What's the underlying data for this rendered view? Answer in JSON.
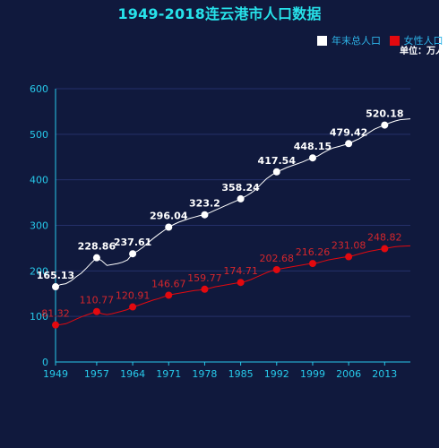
{
  "chart_data": {
    "type": "line",
    "title": "1949-2018连云港市人口数据",
    "unit": "单位：万人",
    "xlabel": "",
    "ylabel": "",
    "x_ticks": [
      "1949",
      "1957",
      "1964",
      "1971",
      "1978",
      "1985",
      "1992",
      "1999",
      "2006",
      "2013"
    ],
    "ylim": [
      0,
      600
    ],
    "y_ticks": [
      0,
      100,
      200,
      300,
      400,
      500,
      600
    ],
    "grid": true,
    "legend": "top-right",
    "series": [
      {
        "name": "年末总人口",
        "color": "#ffffff",
        "line": [
          [
            1949,
            165
          ],
          [
            1950,
            170
          ],
          [
            1951,
            172
          ],
          [
            1952,
            178
          ],
          [
            1953,
            187
          ],
          [
            1954,
            195
          ],
          [
            1955,
            206
          ],
          [
            1956,
            218
          ],
          [
            1957,
            228.9
          ],
          [
            1958,
            222
          ],
          [
            1959,
            212
          ],
          [
            1960,
            214
          ],
          [
            1961,
            216
          ],
          [
            1962,
            219
          ],
          [
            1963,
            224
          ],
          [
            1964,
            237.6
          ],
          [
            1965,
            244
          ],
          [
            1966,
            252
          ],
          [
            1967,
            262
          ],
          [
            1968,
            271
          ],
          [
            1969,
            280
          ],
          [
            1970,
            288
          ],
          [
            1971,
            296
          ],
          [
            1972,
            302
          ],
          [
            1973,
            307
          ],
          [
            1974,
            311
          ],
          [
            1975,
            315
          ],
          [
            1976,
            318
          ],
          [
            1977,
            321
          ],
          [
            1978,
            323.2
          ],
          [
            1979,
            328
          ],
          [
            1980,
            333
          ],
          [
            1981,
            338
          ],
          [
            1982,
            343
          ],
          [
            1983,
            348
          ],
          [
            1984,
            353
          ],
          [
            1985,
            358.2
          ],
          [
            1986,
            364
          ],
          [
            1987,
            371
          ],
          [
            1988,
            379
          ],
          [
            1989,
            391
          ],
          [
            1990,
            402
          ],
          [
            1991,
            410
          ],
          [
            1992,
            417.5
          ],
          [
            1993,
            422
          ],
          [
            1994,
            427
          ],
          [
            1995,
            431
          ],
          [
            1996,
            435
          ],
          [
            1997,
            439
          ],
          [
            1998,
            444
          ],
          [
            1999,
            448.2
          ],
          [
            2000,
            452
          ],
          [
            2001,
            459
          ],
          [
            2002,
            465
          ],
          [
            2003,
            470
          ],
          [
            2004,
            473
          ],
          [
            2005,
            476
          ],
          [
            2006,
            479.4
          ],
          [
            2007,
            485
          ],
          [
            2008,
            490
          ],
          [
            2009,
            497
          ],
          [
            2010,
            504
          ],
          [
            2011,
            511
          ],
          [
            2012,
            516
          ],
          [
            2013,
            520.2
          ],
          [
            2014,
            525
          ],
          [
            2015,
            529
          ],
          [
            2016,
            532
          ],
          [
            2017,
            533
          ],
          [
            2018,
            534
          ]
        ],
        "points": [
          [
            1949,
            165.13
          ],
          [
            1957,
            228.86
          ],
          [
            1964,
            237.61
          ],
          [
            1971,
            296.04
          ],
          [
            1978,
            323.2
          ],
          [
            1985,
            358.24
          ],
          [
            1992,
            417.54
          ],
          [
            1999,
            448.15
          ],
          [
            2006,
            479.42
          ],
          [
            2013,
            520.18
          ]
        ],
        "labels": [
          "165.13",
          "228.86",
          "237.61",
          "296.04",
          "323.2",
          "358.24",
          "417.54",
          "448.15",
          "479.42",
          "520.18"
        ]
      },
      {
        "name": "女性人口",
        "color": "#e3090f",
        "line": [
          [
            1949,
            81.3
          ],
          [
            1950,
            82
          ],
          [
            1951,
            84
          ],
          [
            1952,
            89
          ],
          [
            1953,
            94
          ],
          [
            1954,
            99
          ],
          [
            1955,
            103
          ],
          [
            1956,
            107
          ],
          [
            1957,
            110.8
          ],
          [
            1958,
            106
          ],
          [
            1959,
            104
          ],
          [
            1960,
            106
          ],
          [
            1961,
            109
          ],
          [
            1962,
            112
          ],
          [
            1963,
            115
          ],
          [
            1964,
            120.9
          ],
          [
            1965,
            124
          ],
          [
            1966,
            128
          ],
          [
            1967,
            132
          ],
          [
            1968,
            136
          ],
          [
            1969,
            139
          ],
          [
            1970,
            143
          ],
          [
            1971,
            146.7
          ],
          [
            1972,
            149
          ],
          [
            1973,
            151
          ],
          [
            1974,
            153
          ],
          [
            1975,
            155
          ],
          [
            1976,
            157
          ],
          [
            1977,
            158
          ],
          [
            1978,
            159.8
          ],
          [
            1979,
            162
          ],
          [
            1980,
            165
          ],
          [
            1981,
            167
          ],
          [
            1982,
            169
          ],
          [
            1983,
            171
          ],
          [
            1984,
            173
          ],
          [
            1985,
            174.7
          ],
          [
            1986,
            177
          ],
          [
            1987,
            181
          ],
          [
            1988,
            186
          ],
          [
            1989,
            191
          ],
          [
            1990,
            196
          ],
          [
            1991,
            200
          ],
          [
            1992,
            202.7
          ],
          [
            1993,
            205
          ],
          [
            1994,
            207
          ],
          [
            1995,
            209
          ],
          [
            1996,
            211
          ],
          [
            1997,
            213
          ],
          [
            1998,
            215
          ],
          [
            1999,
            216.3
          ],
          [
            2000,
            218
          ],
          [
            2001,
            221
          ],
          [
            2002,
            224
          ],
          [
            2003,
            226
          ],
          [
            2004,
            228
          ],
          [
            2005,
            230
          ],
          [
            2006,
            231.1
          ],
          [
            2007,
            234
          ],
          [
            2008,
            237
          ],
          [
            2009,
            240
          ],
          [
            2010,
            243
          ],
          [
            2011,
            245
          ],
          [
            2012,
            247
          ],
          [
            2013,
            248.8
          ],
          [
            2014,
            251
          ],
          [
            2015,
            253
          ],
          [
            2016,
            254
          ],
          [
            2017,
            254.5
          ],
          [
            2018,
            255
          ]
        ],
        "points": [
          [
            1949,
            81.32
          ],
          [
            1957,
            110.77
          ],
          [
            1964,
            120.91
          ],
          [
            1971,
            146.67
          ],
          [
            1978,
            159.77
          ],
          [
            1985,
            174.71
          ],
          [
            1992,
            202.68
          ],
          [
            1999,
            216.26
          ],
          [
            2006,
            231.08
          ],
          [
            2013,
            248.82
          ]
        ],
        "labels": [
          "81.32",
          "110.77",
          "120.91",
          "146.67",
          "159.77",
          "174.71",
          "202.68",
          "216.26",
          "231.08",
          "248.82"
        ]
      }
    ]
  }
}
